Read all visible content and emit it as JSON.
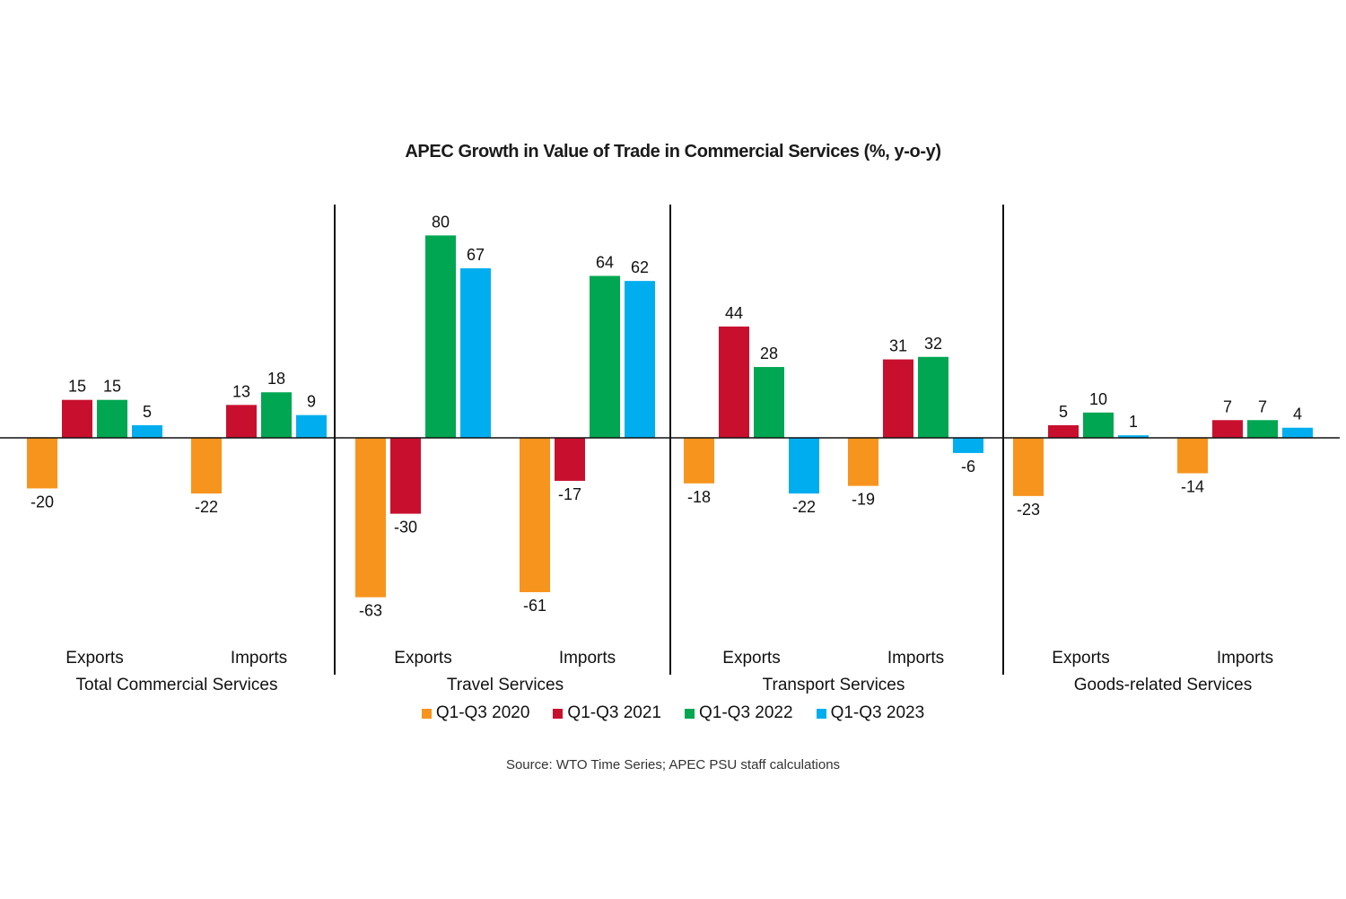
{
  "chart_data": {
    "type": "bar",
    "title": "APEC Growth in Value of Trade in Commercial Services (%, y-o-y)",
    "source": "Source: WTO Time Series; APEC PSU staff calculations",
    "groups": [
      {
        "name": "Total Commercial Services",
        "subcategories": [
          "Exports",
          "Imports"
        ]
      },
      {
        "name": "Travel Services",
        "subcategories": [
          "Exports",
          "Imports"
        ]
      },
      {
        "name": "Transport Services",
        "subcategories": [
          "Exports",
          "Imports"
        ]
      },
      {
        "name": "Goods-related Services",
        "subcategories": [
          "Exports",
          "Imports"
        ]
      }
    ],
    "categories": [
      "Total Commercial Services - Exports",
      "Total Commercial Services - Imports",
      "Travel Services - Exports",
      "Travel Services - Imports",
      "Transport Services - Exports",
      "Transport Services - Imports",
      "Goods-related Services - Exports",
      "Goods-related Services - Imports"
    ],
    "series": [
      {
        "name": "Q1-Q3 2020",
        "color": "#f7941d",
        "values": [
          -20,
          -22,
          -63,
          -61,
          -18,
          -19,
          -23,
          -14
        ]
      },
      {
        "name": "Q1-Q3 2021",
        "color": "#c8102e",
        "values": [
          15,
          13,
          -30,
          -17,
          44,
          31,
          5,
          7
        ]
      },
      {
        "name": "Q1-Q3 2022",
        "color": "#00a651",
        "values": [
          15,
          18,
          80,
          64,
          28,
          32,
          10,
          7
        ]
      },
      {
        "name": "Q1-Q3 2023",
        "color": "#00aeef",
        "values": [
          5,
          9,
          67,
          62,
          -22,
          -6,
          1,
          4
        ]
      }
    ],
    "ylim": [
      -63,
      80
    ],
    "legend_position": "bottom",
    "grid": false
  }
}
